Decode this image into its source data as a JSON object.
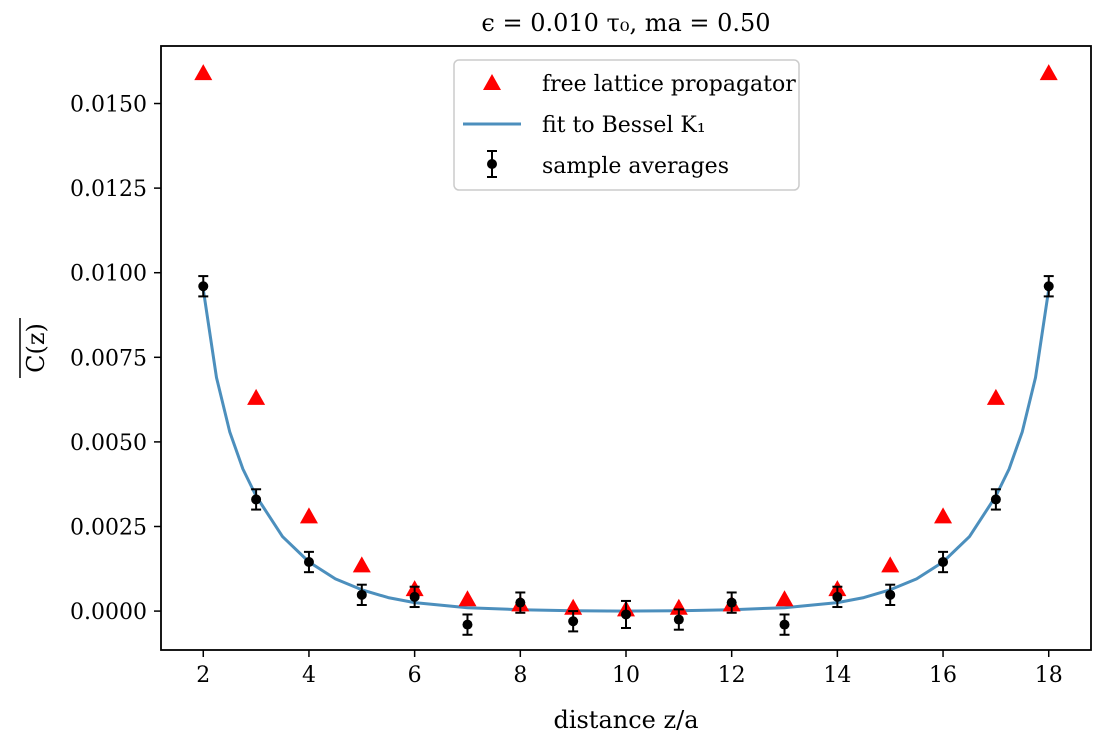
{
  "chart_data": {
    "type": "scatter",
    "title": "ϵ = 0.010 τ₀,  ma = 0.50",
    "xlabel": "distance  z/a",
    "ylabel": "C(z)",
    "xlim": [
      1.2,
      18.8
    ],
    "ylim": [
      -0.00115,
      0.0167
    ],
    "x_ticks": [
      2,
      4,
      6,
      8,
      10,
      12,
      14,
      16,
      18
    ],
    "x_tick_labels": [
      "2",
      "4",
      "6",
      "8",
      "10",
      "12",
      "14",
      "16",
      "18"
    ],
    "y_ticks": [
      0.0,
      0.0025,
      0.005,
      0.0075,
      0.01,
      0.0125,
      0.015
    ],
    "y_tick_labels": [
      "0.0000",
      "0.0025",
      "0.0050",
      "0.0075",
      "0.0100",
      "0.0125",
      "0.0150"
    ],
    "grid": false,
    "legend_position": "top-center",
    "series": [
      {
        "name": "free lattice propagator",
        "kind": "marker-triangle",
        "color": "#ff0000",
        "x": [
          2,
          3,
          4,
          5,
          6,
          7,
          8,
          9,
          10,
          11,
          12,
          13,
          14,
          15,
          16,
          17,
          18
        ],
        "y": [
          0.0159,
          0.0063,
          0.0028,
          0.00135,
          0.00065,
          0.00035,
          0.0002,
          0.0001,
          5e-05,
          0.0001,
          0.0002,
          0.00035,
          0.00065,
          0.00135,
          0.0028,
          0.0063,
          0.0159
        ]
      },
      {
        "name": "fit to Bessel K₁",
        "kind": "line",
        "color": "#4c8fbd",
        "x": [
          2,
          2.25,
          2.5,
          2.75,
          3,
          3.5,
          4,
          4.5,
          5,
          5.5,
          6,
          7,
          8,
          9,
          10,
          11,
          12,
          13,
          14,
          14.5,
          15,
          15.5,
          16,
          16.5,
          17,
          17.25,
          17.5,
          17.75,
          18
        ],
        "y": [
          0.0095,
          0.0069,
          0.0053,
          0.0042,
          0.0034,
          0.0022,
          0.00145,
          0.00095,
          0.00063,
          0.0004,
          0.00025,
          0.0001,
          4e-05,
          1e-05,
          0.0,
          1e-05,
          4e-05,
          0.0001,
          0.00025,
          0.0004,
          0.00063,
          0.00095,
          0.00145,
          0.0022,
          0.0034,
          0.0042,
          0.0053,
          0.0069,
          0.0095
        ]
      },
      {
        "name": "sample averages",
        "kind": "errorbar",
        "color": "#000000",
        "x": [
          2,
          3,
          4,
          5,
          6,
          7,
          8,
          9,
          10,
          11,
          12,
          13,
          14,
          15,
          16,
          17,
          18
        ],
        "y": [
          0.0096,
          0.0033,
          0.00145,
          0.00048,
          0.00042,
          -0.0004,
          0.00025,
          -0.0003,
          -0.0001,
          -0.00025,
          0.00025,
          -0.0004,
          0.00042,
          0.00048,
          0.00145,
          0.0033,
          0.0096
        ],
        "err": [
          0.0003,
          0.0003,
          0.0003,
          0.0003,
          0.0003,
          0.0003,
          0.0003,
          0.0003,
          0.0004,
          0.0003,
          0.0003,
          0.0003,
          0.0003,
          0.0003,
          0.0003,
          0.0003,
          0.0003
        ]
      }
    ]
  }
}
